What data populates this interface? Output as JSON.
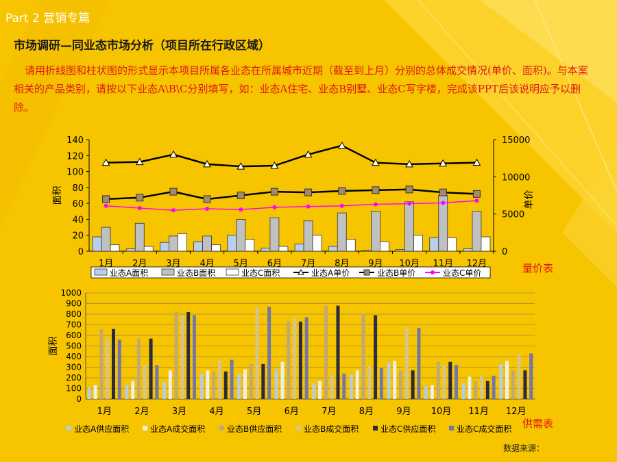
{
  "header": {
    "section": "Part 2 营销专篇"
  },
  "title": "市场调研—同业态市场分析（项目所在行政区域）",
  "instruction": "请用折线图和柱状图的形式显示本项目所属各业态在所属城市近期（截至到上月）分别的总体成交情况(单价、面积)。与本案相关的产品类别，请按以下业态A\\B\\C分别填写，如：业态A住宅、业态B别墅、业态C写字楼，完成该PPT后该说明应予以删除。",
  "footer": {
    "source": "数据来源："
  },
  "colors": {
    "bg": "#f7c400",
    "title": "#1a1a1a",
    "text_red": "#e0170f",
    "areaA": "#b8d0ec",
    "areaB": "#c0c0c0",
    "areaC": "#ffffff",
    "priceA": "#000000",
    "priceB": "#000000",
    "priceB_marker": "#a38a6a",
    "priceC": "#ff00ff",
    "supplyA": "#b7cbe2",
    "dealA": "#eeeeee",
    "supplyB": "#c2a874",
    "dealB": "#d6c38d",
    "supplyC": "#2b2b3f",
    "dealC": "#7377a6"
  },
  "chart_data": [
    {
      "type": "bar+line",
      "label": "量价表",
      "categories": [
        "1月",
        "2月",
        "3月",
        "4月",
        "5月",
        "6月",
        "7月",
        "8月",
        "9月",
        "10月",
        "11月",
        "12月"
      ],
      "ylabel": "面积",
      "y2label": "单价",
      "ylim": [
        0,
        140
      ],
      "y2lim": [
        0,
        15000
      ],
      "yticks": [
        "0",
        "20",
        "40",
        "60",
        "80",
        "100",
        "120",
        "140"
      ],
      "y2ticks": [
        "0",
        "5000",
        "10000",
        "15000"
      ],
      "series": [
        {
          "name": "业态A面积",
          "kind": "bar",
          "axis": "left",
          "values": [
            18,
            3,
            11,
            12,
            20,
            4,
            9,
            6,
            1,
            2,
            17,
            3
          ]
        },
        {
          "name": "业态B面积",
          "kind": "bar",
          "axis": "left",
          "values": [
            30,
            35,
            19,
            19,
            40,
            42,
            38,
            48,
            50,
            62,
            70,
            50
          ]
        },
        {
          "name": "业态C面积",
          "kind": "bar",
          "axis": "left",
          "values": [
            8,
            6,
            22,
            8,
            15,
            6,
            20,
            15,
            12,
            20,
            17,
            18
          ]
        },
        {
          "name": "业态A单价",
          "kind": "line",
          "axis": "right",
          "marker": "triangle",
          "values": [
            11900,
            12000,
            13000,
            11700,
            11400,
            11500,
            13000,
            14200,
            11900,
            11700,
            11800,
            11900
          ]
        },
        {
          "name": "业态B单价",
          "kind": "line",
          "axis": "right",
          "marker": "square",
          "values": [
            7000,
            7200,
            8000,
            7000,
            7500,
            8000,
            7900,
            8100,
            8200,
            8300,
            7900,
            7700
          ]
        },
        {
          "name": "业态C单价",
          "kind": "line",
          "axis": "right",
          "marker": "circle",
          "values": [
            6100,
            5800,
            5500,
            5700,
            5600,
            5900,
            6000,
            6100,
            6300,
            6400,
            6500,
            6800
          ]
        }
      ],
      "grid": false,
      "legend": "bottom"
    },
    {
      "type": "bar",
      "label": "供需表",
      "categories": [
        "1月",
        "2月",
        "3月",
        "4月",
        "5月",
        "6月",
        "7月",
        "8月",
        "9月",
        "10月",
        "11月",
        "12月"
      ],
      "ylabel": "面积",
      "ylim": [
        0,
        1000
      ],
      "yticks": [
        "0",
        "100",
        "200",
        "300",
        "400",
        "500",
        "600",
        "700",
        "800",
        "900",
        "1000"
      ],
      "series": [
        {
          "name": "业态A供应面积",
          "values": [
            110,
            130,
            160,
            240,
            240,
            280,
            150,
            230,
            340,
            120,
            150,
            330
          ]
        },
        {
          "name": "业态A成交面积",
          "values": [
            130,
            170,
            270,
            270,
            280,
            350,
            170,
            270,
            360,
            130,
            210,
            360
          ]
        },
        {
          "name": "业态B供应面积",
          "values": [
            660,
            570,
            820,
            260,
            330,
            730,
            880,
            800,
            270,
            350,
            170,
            270
          ]
        },
        {
          "name": "业态B成交面积",
          "values": [
            570,
            320,
            790,
            370,
            870,
            770,
            230,
            310,
            680,
            320,
            220,
            420
          ]
        },
        {
          "name": "业态C供应面积",
          "values": [
            660,
            570,
            820,
            260,
            330,
            730,
            880,
            790,
            270,
            350,
            170,
            270
          ]
        },
        {
          "name": "业态C成交面积",
          "values": [
            560,
            320,
            790,
            370,
            870,
            770,
            240,
            290,
            670,
            320,
            220,
            430
          ]
        }
      ],
      "grid": true,
      "legend": "bottom"
    }
  ]
}
